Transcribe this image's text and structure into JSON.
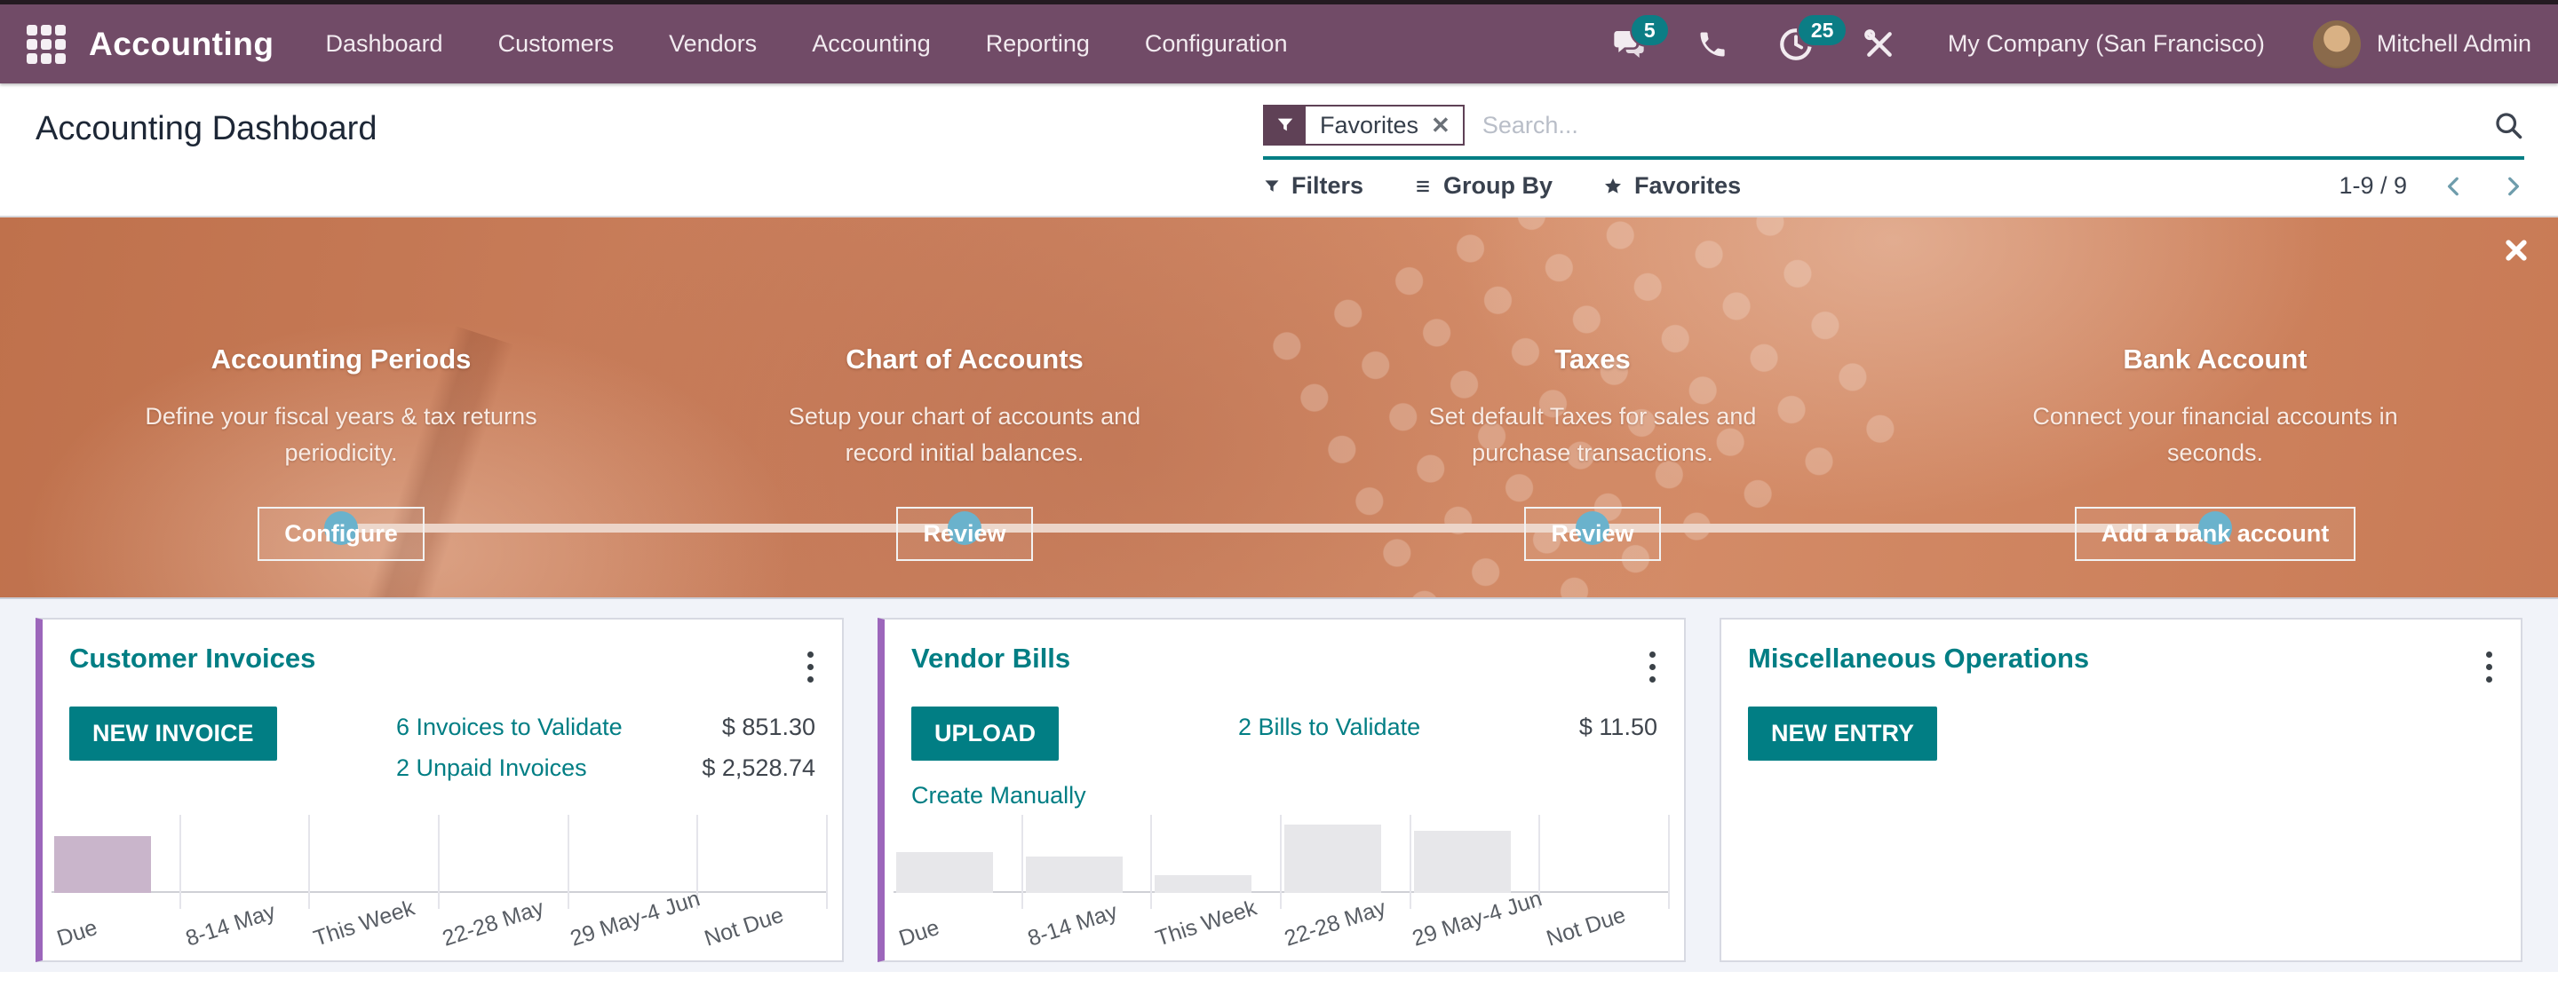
{
  "navbar": {
    "brand": "Accounting",
    "menu": [
      "Dashboard",
      "Customers",
      "Vendors",
      "Accounting",
      "Reporting",
      "Configuration"
    ],
    "badges": {
      "messages": "5",
      "activities": "25"
    },
    "company": "My Company (San Francisco)",
    "user": "Mitchell Admin"
  },
  "control_panel": {
    "title": "Accounting Dashboard",
    "search": {
      "facet": "Favorites",
      "placeholder": "Search..."
    },
    "buttons": {
      "filters": "Filters",
      "group_by": "Group By",
      "favorites": "Favorites"
    },
    "pager": {
      "text": "1-9 / 9"
    }
  },
  "onboarding": {
    "steps": [
      {
        "title": "Accounting Periods",
        "description": "Define your fiscal years & tax returns periodicity.",
        "button_label": "Configure"
      },
      {
        "title": "Chart of Accounts",
        "description": "Setup your chart of accounts and record initial balances.",
        "button_label": "Review"
      },
      {
        "title": "Taxes",
        "description": "Set default Taxes for sales and purchase transactions.",
        "button_label": "Review"
      },
      {
        "title": "Bank Account",
        "description": "Connect your financial accounts in seconds.",
        "button_label": "Add a bank account"
      }
    ]
  },
  "cards": {
    "customer_invoices": {
      "title": "Customer Invoices",
      "button": "NEW INVOICE",
      "rows": [
        {
          "label": "6 Invoices to Validate",
          "amount": "$ 851.30"
        },
        {
          "label": "2 Unpaid Invoices",
          "amount": "$ 2,528.74"
        }
      ]
    },
    "vendor_bills": {
      "title": "Vendor Bills",
      "button": "UPLOAD",
      "link": "Create Manually",
      "rows": [
        {
          "label": "2 Bills to Validate",
          "amount": "$ 11.50"
        }
      ]
    },
    "miscellaneous_operations": {
      "title": "Miscellaneous Operations",
      "button": "NEW ENTRY"
    }
  },
  "chart_data": [
    {
      "type": "bar",
      "title": "Customer Invoices due-date histogram",
      "categories": [
        "Due",
        "8-14 May",
        "This Week",
        "22-28 May",
        "29 May-4 Jun",
        "Not Due"
      ],
      "values": [
        73,
        0,
        0,
        0,
        0,
        0
      ],
      "ylim": [
        0,
        100
      ],
      "xlabel": "",
      "ylabel": "",
      "grid": "vertical-only",
      "legend": "none",
      "bar_color": "#C9B5CB",
      "note": "no y-axis labels shown; values are relative bar heights"
    },
    {
      "type": "bar",
      "title": "Vendor Bills due-date histogram",
      "categories": [
        "Due",
        "8-14 May",
        "This Week",
        "22-28 May",
        "29 May-4 Jun",
        "Not Due"
      ],
      "values": [
        52,
        47,
        23,
        88,
        80,
        0
      ],
      "ylim": [
        0,
        100
      ],
      "xlabel": "",
      "ylabel": "",
      "grid": "vertical-only",
      "legend": "none",
      "bar_color": "#E7E7EA",
      "note": "no y-axis labels shown; values are relative bar heights"
    }
  ],
  "icons": {
    "apps_grid": "3x3-dot-grid",
    "messages": "chat-bubbles",
    "phone": "handset",
    "activities": "clock",
    "tools": "wrench-screwdriver",
    "search": "magnifier",
    "filter": "funnel",
    "group_by": "triple-bars",
    "favorites": "star",
    "pager_prev": "chevron-left",
    "pager_next": "chevron-right",
    "card_menu": "kebab-dots",
    "banner_close": "cross"
  },
  "colors": {
    "navbar": "#714B67",
    "accent_teal": "#017E84",
    "badge": "#0B7D85",
    "banner_dot": "#5FADC9",
    "card_accent": "#9C66BB",
    "bar_customer": "#C9B5CB",
    "bar_vendor": "#E7E7EA",
    "section_bg": "#F1F3F9"
  }
}
